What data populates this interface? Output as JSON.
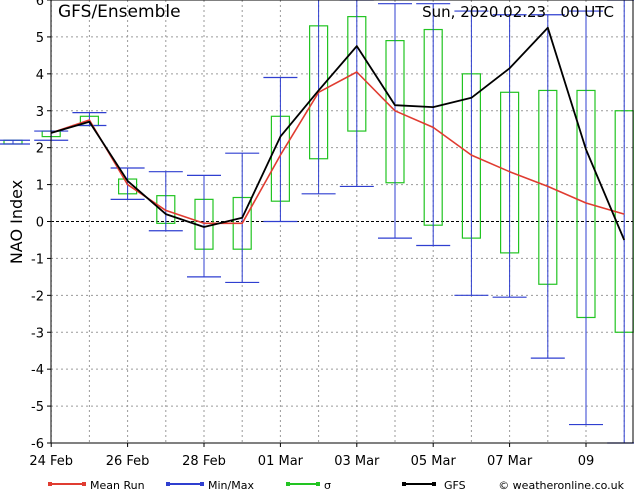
{
  "header": {
    "title": "GFS/Ensemble",
    "timestamp": "Sun, 2020.02.23   00 UTC"
  },
  "footer": {
    "credit": "© weatheronline.co.uk"
  },
  "colors": {
    "mean": "#e03c31",
    "minmax": "#2f3fd0",
    "sigma": "#22c422",
    "gfs": "#000000",
    "grid": "#9a9a9a"
  },
  "chart_data": {
    "type": "line",
    "ylabel": "NAO Index",
    "ylim": [
      -6,
      6
    ],
    "yticks": [
      -6,
      -5,
      -4,
      -3,
      -2,
      -1,
      0,
      1,
      2,
      3,
      4,
      5,
      6
    ],
    "grid": true,
    "zero_line": true,
    "x_ticks": [
      {
        "day": 1,
        "label": "24 Feb"
      },
      {
        "day": 3,
        "label": "26 Feb"
      },
      {
        "day": 5,
        "label": "28 Feb"
      },
      {
        "day": 7,
        "label": "01 Mar"
      },
      {
        "day": 9,
        "label": "03 Mar"
      },
      {
        "day": 11,
        "label": "05 Mar"
      },
      {
        "day": 13,
        "label": "07 Mar"
      },
      {
        "day": 15,
        "label": "09"
      }
    ],
    "series": [
      {
        "name": "Mean Run",
        "x": [
          0,
          1,
          2,
          3,
          4,
          5,
          6,
          7,
          8,
          9,
          10,
          11,
          12,
          13,
          14,
          15,
          16
        ],
        "values": [
          2.15,
          2.4,
          2.75,
          1.0,
          0.3,
          -0.05,
          -0.05,
          1.8,
          3.5,
          4.05,
          3.0,
          2.55,
          1.8,
          1.35,
          0.95,
          0.5,
          0.2
        ]
      },
      {
        "name": "GFS",
        "x": [
          0,
          1,
          2,
          3,
          4,
          5,
          6,
          7,
          8,
          9,
          10,
          11,
          12,
          13,
          14,
          15,
          16
        ],
        "values": [
          2.0,
          2.4,
          2.7,
          1.1,
          0.2,
          -0.15,
          0.1,
          2.3,
          3.55,
          4.75,
          3.15,
          3.1,
          3.35,
          4.15,
          5.25,
          1.95,
          -0.5
        ]
      },
      {
        "name": "Min/Max",
        "x": [
          0,
          1,
          2,
          3,
          4,
          5,
          6,
          7,
          8,
          9,
          10,
          11,
          12,
          13,
          14,
          15,
          16
        ],
        "min": [
          2.1,
          2.2,
          2.6,
          0.6,
          -0.25,
          -1.5,
          -1.65,
          0.0,
          0.75,
          0.95,
          -0.45,
          -0.65,
          -2.0,
          -2.05,
          -3.7,
          -5.5,
          -6
        ],
        "max": [
          2.2,
          2.45,
          2.95,
          1.45,
          1.35,
          1.25,
          1.85,
          3.9,
          6.1,
          6.0,
          5.9,
          5.9,
          5.7,
          5.6,
          5.6,
          5.7,
          6
        ]
      },
      {
        "name": "σ",
        "x": [
          0,
          1,
          2,
          3,
          4,
          5,
          6,
          7,
          8,
          9,
          10,
          11,
          12,
          13,
          14,
          15,
          16
        ],
        "low": [
          2.1,
          2.3,
          2.6,
          0.75,
          -0.05,
          -0.75,
          -0.75,
          0.55,
          1.7,
          2.45,
          1.05,
          -0.1,
          -0.45,
          -0.85,
          -1.7,
          -2.6,
          -3
        ],
        "high": [
          2.2,
          2.45,
          2.85,
          1.15,
          0.7,
          0.6,
          0.65,
          2.85,
          5.3,
          5.55,
          4.9,
          5.2,
          4.0,
          3.5,
          3.55,
          3.55,
          3
        ]
      }
    ]
  }
}
